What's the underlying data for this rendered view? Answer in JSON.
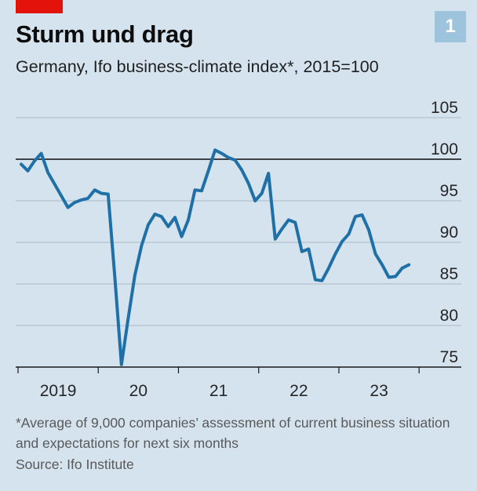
{
  "header": {
    "title": "Sturm und drag",
    "subtitle": "Germany, Ifo business-climate index*, 2015=100",
    "badge": "1",
    "accent": "#e3120b",
    "badge_color": "#9ec3dc"
  },
  "footer": {
    "footnote": "*Average of 9,000 companies’ assessment of current business situation and expectations for next six months",
    "source": "Source: Ifo Institute"
  },
  "chart_data": {
    "type": "line",
    "title": "Sturm und drag",
    "subtitle": "Germany, Ifo business-climate index*, 2015=100",
    "xlabel": "",
    "ylabel": "",
    "ylim": [
      75,
      105
    ],
    "yticks": [
      75,
      80,
      85,
      90,
      95,
      100,
      105
    ],
    "xticks": [
      "2019",
      "20",
      "21",
      "22",
      "23"
    ],
    "reference_line": 100,
    "grid": true,
    "line_color": "#1f70a6",
    "series": [
      {
        "name": "",
        "x": [
          "2019-01",
          "2019-02",
          "2019-03",
          "2019-04",
          "2019-05",
          "2019-06",
          "2019-07",
          "2019-08",
          "2019-09",
          "2019-10",
          "2019-11",
          "2019-12",
          "2020-01",
          "2020-02",
          "2020-03",
          "2020-04",
          "2020-05",
          "2020-06",
          "2020-07",
          "2020-08",
          "2020-09",
          "2020-10",
          "2020-11",
          "2020-12",
          "2021-01",
          "2021-02",
          "2021-03",
          "2021-04",
          "2021-05",
          "2021-06",
          "2021-07",
          "2021-08",
          "2021-09",
          "2021-10",
          "2021-11",
          "2021-12",
          "2022-01",
          "2022-02",
          "2022-03",
          "2022-04",
          "2022-05",
          "2022-06",
          "2022-07",
          "2022-08",
          "2022-09",
          "2022-10",
          "2022-11",
          "2022-12",
          "2023-01",
          "2023-02",
          "2023-03",
          "2023-04",
          "2023-05",
          "2023-06",
          "2023-07",
          "2023-08",
          "2023-09",
          "2023-10"
        ],
        "values": [
          99.4,
          98.6,
          99.8,
          100.7,
          98.4,
          97.0,
          95.6,
          94.2,
          94.8,
          95.1,
          95.3,
          96.3,
          95.9,
          95.8,
          85.9,
          75.3,
          80.8,
          86.0,
          89.6,
          92.1,
          93.4,
          93.1,
          91.9,
          93.0,
          90.7,
          92.7,
          96.3,
          96.2,
          98.6,
          101.1,
          100.7,
          100.2,
          99.9,
          98.7,
          97.1,
          95.0,
          95.9,
          98.3,
          90.4,
          91.6,
          92.7,
          92.4,
          88.9,
          89.2,
          85.5,
          85.4,
          86.9,
          88.6,
          90.1,
          91.0,
          93.1,
          93.3,
          91.5,
          88.6,
          87.3,
          85.8,
          85.9,
          86.9
        ]
      },
      {
        "name": "",
        "x": [
          "2023-10",
          "2023-11"
        ],
        "values": [
          86.9,
          87.3
        ]
      }
    ]
  }
}
